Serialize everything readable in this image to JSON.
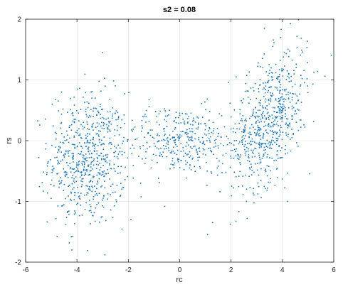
{
  "chart_data": {
    "type": "scatter",
    "title": "s2 = 0.08",
    "xlabel": "rc",
    "ylabel": "rs",
    "xlim": [
      -6,
      6
    ],
    "ylim": [
      -2,
      2
    ],
    "xticks": [
      -6,
      -4,
      -2,
      0,
      2,
      4,
      6
    ],
    "yticks": [
      -2,
      -1,
      0,
      1,
      2
    ],
    "xtick_labels": [
      "-6",
      "-4",
      "-2",
      "0",
      "2",
      "4",
      "6"
    ],
    "ytick_labels": [
      "-2",
      "-1",
      "0",
      "1",
      "2"
    ],
    "grid": true,
    "marker_color": "#1f77b4",
    "clusters": [
      {
        "x_center": -3.6,
        "y_center": -0.3,
        "x_spread": 0.75,
        "y_spread": 0.55,
        "count": 620
      },
      {
        "x_center": 0.0,
        "y_center": 0.0,
        "x_spread": 1.15,
        "y_spread": 0.28,
        "count": 380
      },
      {
        "x_center": 3.5,
        "y_center": 0.35,
        "x_spread": 0.75,
        "y_spread": 0.5,
        "count": 640
      }
    ],
    "sample_points": [
      [
        -4.6,
        0.8
      ],
      [
        -4.2,
        -1.8
      ],
      [
        -3.0,
        1.45
      ],
      [
        -2.9,
        0.9
      ],
      [
        -2.3,
        -0.9
      ],
      [
        -1.9,
        -1.3
      ],
      [
        -0.4,
        0.5
      ],
      [
        0.4,
        -0.4
      ],
      [
        1.3,
        0.3
      ],
      [
        2.2,
        1.05
      ],
      [
        3.3,
        1.85
      ],
      [
        3.9,
        2.0
      ],
      [
        4.2,
        -1.0
      ],
      [
        4.7,
        0.9
      ],
      [
        2.6,
        -1.0
      ]
    ]
  }
}
